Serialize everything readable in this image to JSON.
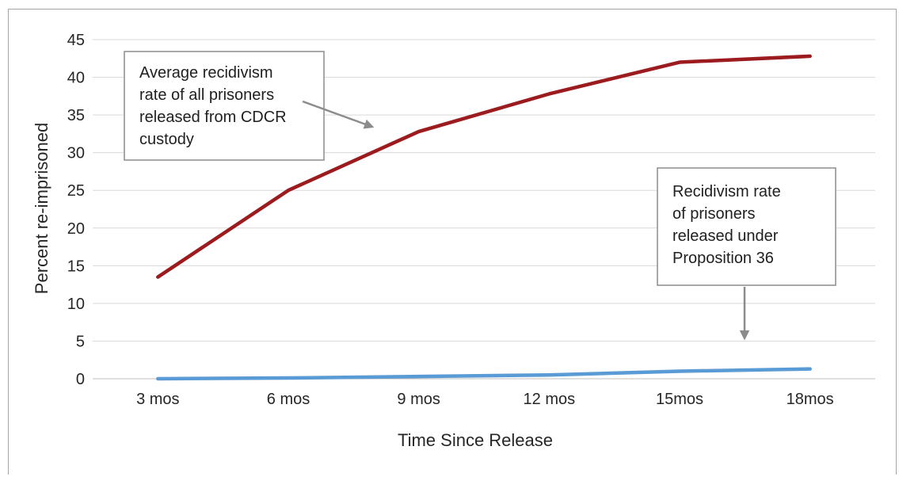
{
  "chart_data": {
    "type": "line",
    "categories": [
      "3 mos",
      "6 mos",
      "9 mos",
      "12 mos",
      "15mos",
      "18mos"
    ],
    "series": [
      {
        "values": [
          13.5,
          25,
          32.8,
          37.8,
          42,
          42.8
        ],
        "color": "#9b1b1e"
      },
      {
        "values": [
          0,
          0.1,
          0.3,
          0.5,
          1.0,
          1.3
        ],
        "color": "#5b9bd5"
      }
    ],
    "xlabel": "Time Since Release",
    "ylabel": "Percent re-imprisoned",
    "ylim": [
      0,
      45
    ],
    "yticks": [
      0,
      5,
      10,
      15,
      20,
      25,
      30,
      35,
      40,
      45
    ],
    "grid": true,
    "annotations": [
      {
        "lines": [
          "Average recidivism",
          "rate of all prisoners",
          "released from CDCR",
          "custody"
        ]
      },
      {
        "lines": [
          "Recidivism rate",
          "of prisoners",
          "released under",
          "Proposition 36"
        ]
      }
    ]
  }
}
